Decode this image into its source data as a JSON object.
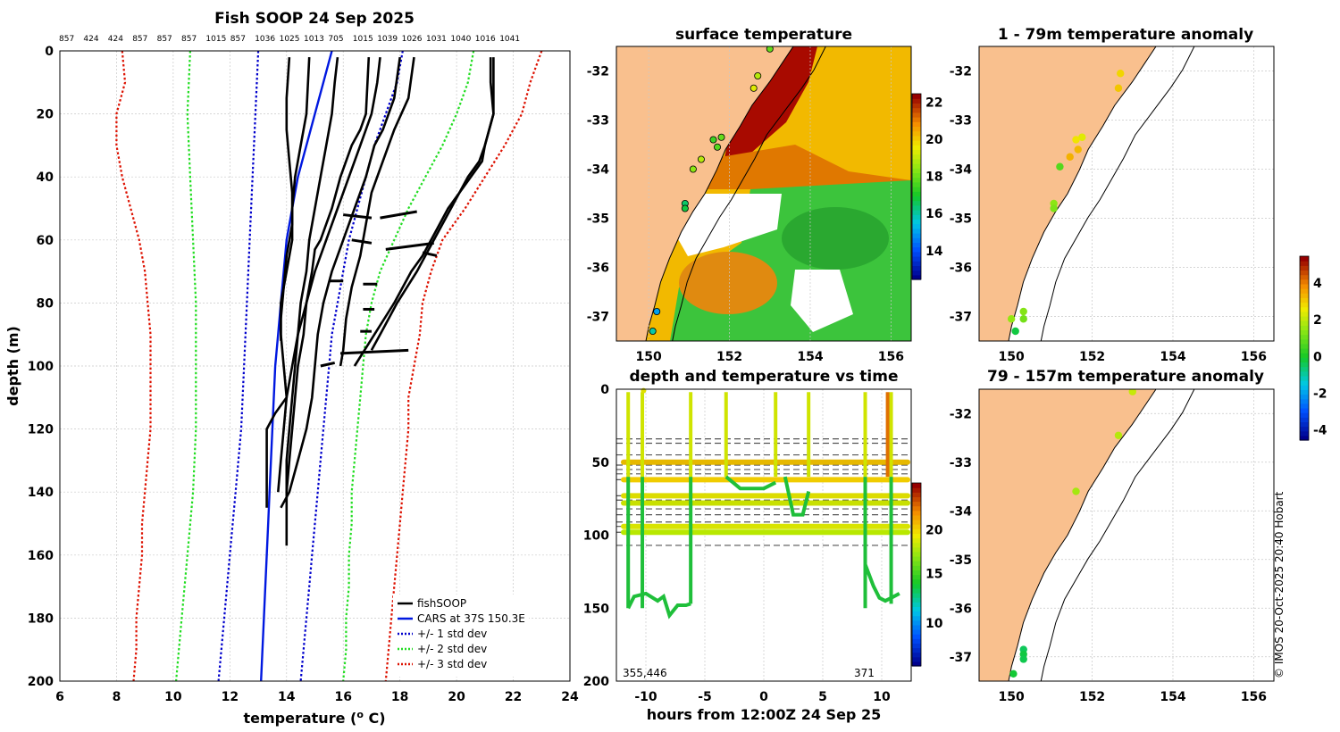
{
  "chart_data": [
    {
      "type": "line",
      "title": "Fish SOOP 24 Sep 2025",
      "top_counts": [
        "857",
        "424",
        "424",
        "857",
        "857",
        "857",
        "1015",
        "857",
        "1036",
        "1025",
        "1013",
        "705",
        "1015",
        "1039",
        "1026",
        "1031",
        "1040",
        "1016",
        "1041"
      ],
      "xlabel": "temperature (",
      "xlabel_sup": "o",
      "xlabel_end": " C)",
      "ylabel": "depth (m)",
      "xlim": [
        6,
        24
      ],
      "ylim": [
        200,
        0
      ],
      "xticks": [
        6,
        8,
        10,
        12,
        14,
        16,
        18,
        20,
        22,
        24
      ],
      "yticks": [
        0,
        20,
        40,
        60,
        80,
        100,
        120,
        140,
        160,
        180,
        200
      ],
      "legend": [
        "fishSOOP",
        "CARS at 37S 150.3E",
        "+/- 1 std dev",
        "+/- 2 std dev",
        "+/- 3 std dev"
      ],
      "colors": {
        "fishsoop": "#000000",
        "cars": "#0018e0",
        "sd1": "#0000cc",
        "sd2": "#22dd22",
        "sd3": "#dd1100"
      },
      "cars": {
        "depth": [
          0,
          10,
          20,
          30,
          40,
          50,
          60,
          70,
          80,
          90,
          100,
          110,
          120,
          130,
          140,
          150,
          160,
          170,
          180,
          190,
          200
        ],
        "temp": [
          15.6,
          15.3,
          15.0,
          14.7,
          14.4,
          14.2,
          14.0,
          13.9,
          13.8,
          13.7,
          13.6,
          13.55,
          13.5,
          13.45,
          13.4,
          13.35,
          13.3,
          13.25,
          13.2,
          13.15,
          13.1
        ]
      },
      "sd_lines": [
        {
          "name": "-1",
          "style": "sd1",
          "depth": [
            0,
            20,
            40,
            60,
            80,
            100,
            120,
            140,
            160,
            180,
            200
          ],
          "temp": [
            13.0,
            12.9,
            12.8,
            12.7,
            12.6,
            12.5,
            12.4,
            12.2,
            12.0,
            11.8,
            11.6
          ]
        },
        {
          "name": "+1",
          "style": "sd1",
          "depth": [
            0,
            10,
            20,
            30,
            40,
            50,
            60,
            70,
            80,
            90,
            100,
            110,
            120,
            130,
            140,
            150,
            160,
            170,
            180,
            190,
            200
          ],
          "temp": [
            18.1,
            17.9,
            17.5,
            17.1,
            16.8,
            16.5,
            16.2,
            16.0,
            15.8,
            15.6,
            15.5,
            15.4,
            15.3,
            15.2,
            15.1,
            15.0,
            14.9,
            14.8,
            14.7,
            14.6,
            14.5
          ]
        },
        {
          "name": "-2",
          "style": "sd2",
          "depth": [
            0,
            20,
            40,
            60,
            80,
            100,
            120,
            140,
            160,
            180,
            200
          ],
          "temp": [
            10.6,
            10.5,
            10.6,
            10.7,
            10.8,
            10.8,
            10.8,
            10.7,
            10.5,
            10.3,
            10.1
          ]
        },
        {
          "name": "+2",
          "style": "sd2",
          "depth": [
            0,
            10,
            20,
            30,
            40,
            50,
            60,
            70,
            80,
            90,
            100,
            110,
            120,
            130,
            140,
            150,
            160,
            170,
            180,
            190,
            200
          ],
          "temp": [
            20.6,
            20.4,
            20.0,
            19.5,
            18.9,
            18.3,
            17.8,
            17.3,
            17.0,
            16.8,
            16.7,
            16.6,
            16.5,
            16.4,
            16.3,
            16.3,
            16.2,
            16.2,
            16.1,
            16.1,
            16.0
          ]
        },
        {
          "name": "-3",
          "style": "sd3",
          "depth": [
            0,
            10,
            20,
            30,
            40,
            50,
            60,
            70,
            80,
            90,
            100,
            110,
            120,
            130,
            140,
            150,
            160,
            170,
            180,
            190,
            200
          ],
          "temp": [
            8.2,
            8.3,
            8.0,
            8.0,
            8.2,
            8.5,
            8.8,
            9.0,
            9.1,
            9.2,
            9.2,
            9.2,
            9.2,
            9.1,
            9.0,
            8.9,
            8.9,
            8.8,
            8.7,
            8.7,
            8.6
          ]
        },
        {
          "name": "+3",
          "style": "sd3",
          "depth": [
            0,
            10,
            20,
            30,
            40,
            50,
            60,
            70,
            80,
            90,
            100,
            110,
            120,
            130,
            140,
            150,
            160,
            170,
            180,
            190,
            200
          ],
          "temp": [
            23.0,
            22.6,
            22.3,
            21.7,
            21.0,
            20.3,
            19.5,
            19.1,
            18.8,
            18.7,
            18.5,
            18.3,
            18.3,
            18.2,
            18.1,
            18.0,
            17.9,
            17.8,
            17.7,
            17.6,
            17.5
          ]
        }
      ],
      "profiles": [
        {
          "depth": [
            2,
            20,
            30,
            40,
            50,
            60,
            70,
            80,
            90,
            100,
            110,
            115,
            120,
            130,
            140,
            145
          ],
          "temp": [
            14.8,
            14.7,
            14.5,
            14.3,
            14.2,
            14.2,
            14.0,
            13.8,
            13.8,
            13.9,
            14.0,
            13.6,
            13.3,
            13.3,
            13.3,
            13.3
          ]
        },
        {
          "depth": [
            2,
            10,
            20,
            30,
            40,
            50,
            60,
            70,
            80,
            90,
            100,
            110,
            120,
            130,
            140,
            150,
            157
          ],
          "temp": [
            15.8,
            15.7,
            15.6,
            15.4,
            15.2,
            15.0,
            14.8,
            14.7,
            14.5,
            14.4,
            14.3,
            14.2,
            14.1,
            14.0,
            14.0,
            14.0,
            14.0
          ]
        },
        {
          "depth": [
            2,
            20,
            25,
            30,
            40,
            50,
            60,
            63,
            70,
            80,
            90,
            100,
            110,
            120,
            130,
            140,
            142
          ],
          "temp": [
            16.9,
            16.8,
            16.6,
            16.3,
            15.9,
            15.6,
            15.2,
            15.0,
            14.9,
            14.7,
            14.6,
            14.4,
            14.3,
            14.2,
            14.1,
            14.0,
            14.0
          ]
        },
        {
          "depth": [
            2,
            15,
            25,
            35,
            45,
            55,
            65,
            75,
            85,
            92
          ],
          "temp": [
            14.1,
            14.0,
            14.0,
            14.1,
            14.2,
            14.2,
            14.0,
            13.9,
            13.8,
            13.8
          ]
        },
        {
          "depth": [
            2,
            15,
            20,
            25,
            30,
            40,
            50,
            60,
            70,
            80,
            90,
            100,
            110,
            120,
            130,
            140,
            145
          ],
          "temp": [
            18.0,
            17.8,
            17.6,
            17.4,
            17.1,
            16.8,
            16.4,
            16.0,
            15.6,
            15.3,
            15.1,
            15.0,
            14.9,
            14.7,
            14.4,
            14.1,
            13.8
          ]
        },
        {
          "depth": [
            2,
            10,
            20,
            30,
            35,
            40,
            50,
            60,
            70,
            80,
            90,
            95
          ],
          "temp": [
            21.3,
            21.3,
            21.3,
            21.0,
            20.8,
            20.4,
            19.8,
            19.2,
            18.6,
            17.9,
            17.3,
            17.0
          ]
        },
        {
          "depth": [
            2,
            10,
            20,
            30,
            35,
            40,
            50,
            60,
            65,
            70,
            80,
            90,
            100
          ],
          "temp": [
            21.2,
            21.2,
            21.3,
            21.0,
            20.9,
            20.5,
            19.7,
            19.1,
            18.8,
            18.4,
            17.8,
            17.1,
            16.4
          ]
        },
        {
          "depth": [
            2,
            15,
            25,
            35,
            45,
            55,
            65,
            75,
            85,
            95,
            100
          ],
          "temp": [
            18.5,
            18.3,
            17.8,
            17.4,
            17.0,
            16.8,
            16.6,
            16.3,
            16.1,
            16.0,
            15.9
          ]
        },
        {
          "depth": [
            2,
            10,
            20,
            30,
            40,
            50,
            60,
            70,
            80,
            90,
            100,
            110,
            120,
            130,
            140
          ],
          "temp": [
            17.3,
            17.2,
            17.0,
            16.6,
            16.2,
            15.8,
            15.4,
            15.0,
            14.7,
            14.4,
            14.2,
            14.0,
            13.9,
            13.8,
            13.7
          ]
        }
      ]
    },
    {
      "type": "heatmap",
      "title": "surface temperature",
      "xticks": [
        "150",
        "152",
        "154",
        "156"
      ],
      "yticks": [
        "-32",
        "-33",
        "-34",
        "-35",
        "-36",
        "-37"
      ],
      "xlim": [
        149.2,
        156.5
      ],
      "ylim": [
        -37.5,
        -31.5
      ],
      "colorbar_ticks": [
        "22",
        "20",
        "18",
        "16",
        "14"
      ],
      "colorbar_range": [
        12.5,
        22.5
      ],
      "points": [
        {
          "lon": 153.0,
          "lat": -31.55,
          "t": 18
        },
        {
          "lon": 152.7,
          "lat": -32.1,
          "t": 19
        },
        {
          "lon": 152.6,
          "lat": -32.35,
          "t": 19.5
        },
        {
          "lon": 151.8,
          "lat": -33.35,
          "t": 18
        },
        {
          "lon": 151.6,
          "lat": -33.4,
          "t": 17.5
        },
        {
          "lon": 151.7,
          "lat": -33.55,
          "t": 17.8
        },
        {
          "lon": 151.3,
          "lat": -33.8,
          "t": 19
        },
        {
          "lon": 151.1,
          "lat": -34.0,
          "t": 18.5
        },
        {
          "lon": 150.9,
          "lat": -34.7,
          "t": 16.5
        },
        {
          "lon": 150.9,
          "lat": -34.8,
          "t": 16.8
        },
        {
          "lon": 150.2,
          "lat": -36.9,
          "t": 15
        },
        {
          "lon": 150.1,
          "lat": -37.3,
          "t": 16
        }
      ]
    },
    {
      "type": "line",
      "title": "depth and temperature vs time",
      "xlabel": "hours from 12:00Z 24 Sep 25",
      "xticks": [
        "-10",
        "-5",
        "0",
        "5",
        "10"
      ],
      "yticks": [
        "0",
        "50",
        "100",
        "150",
        "200"
      ],
      "xlim": [
        -12.5,
        12.5
      ],
      "ylim": [
        200,
        0
      ],
      "colorbar_ticks": [
        "20",
        "15",
        "10"
      ],
      "annotations": [
        "355",
        "446",
        "371"
      ],
      "hlines": [
        34,
        37,
        45,
        52,
        55,
        58,
        62,
        73,
        76,
        82,
        86,
        91,
        94,
        98,
        107
      ]
    },
    {
      "type": "scatter",
      "title": "1 - 79m temperature anomaly",
      "xticks": [
        "150",
        "152",
        "154",
        "156"
      ],
      "yticks": [
        "-32",
        "-33",
        "-34",
        "-35",
        "-36",
        "-37"
      ],
      "colorbar_ticks": [
        "4",
        "2",
        "0",
        "-2",
        "-4"
      ],
      "points": [
        {
          "lon": 152.7,
          "lat": -32.05,
          "a": 3.0
        },
        {
          "lon": 152.65,
          "lat": -32.35,
          "a": 3.2
        },
        {
          "lon": 151.75,
          "lat": -33.35,
          "a": 2.5
        },
        {
          "lon": 151.6,
          "lat": -33.4,
          "a": 2.8
        },
        {
          "lon": 151.65,
          "lat": -33.6,
          "a": 3.4
        },
        {
          "lon": 151.45,
          "lat": -33.75,
          "a": 3.5
        },
        {
          "lon": 151.2,
          "lat": -33.95,
          "a": 0.8
        },
        {
          "lon": 151.05,
          "lat": -34.7,
          "a": 1.5
        },
        {
          "lon": 151.05,
          "lat": -34.8,
          "a": 1.3
        },
        {
          "lon": 150.3,
          "lat": -36.9,
          "a": 1.4
        },
        {
          "lon": 150.3,
          "lat": -37.05,
          "a": 1.2
        },
        {
          "lon": 150.0,
          "lat": -37.05,
          "a": 1.6
        },
        {
          "lon": 150.1,
          "lat": -37.3,
          "a": -0.2
        }
      ]
    },
    {
      "type": "scatter",
      "title": "79 - 157m temperature anomaly",
      "xticks": [
        "150",
        "152",
        "154",
        "156"
      ],
      "yticks": [
        "-32",
        "-33",
        "-34",
        "-35",
        "-36",
        "-37"
      ],
      "points": [
        {
          "lon": 153.0,
          "lat": -31.55,
          "a": 2.2
        },
        {
          "lon": 152.65,
          "lat": -32.45,
          "a": 2.0
        },
        {
          "lon": 151.6,
          "lat": -33.6,
          "a": 1.8
        },
        {
          "lon": 150.3,
          "lat": -36.85,
          "a": -0.4
        },
        {
          "lon": 150.3,
          "lat": -36.95,
          "a": -0.2
        },
        {
          "lon": 150.3,
          "lat": -37.05,
          "a": -0.3
        },
        {
          "lon": 150.05,
          "lat": -37.35,
          "a": -0.1
        }
      ]
    }
  ],
  "credit": "© IMOS 20-Oct-2025 20:40 Hobart"
}
